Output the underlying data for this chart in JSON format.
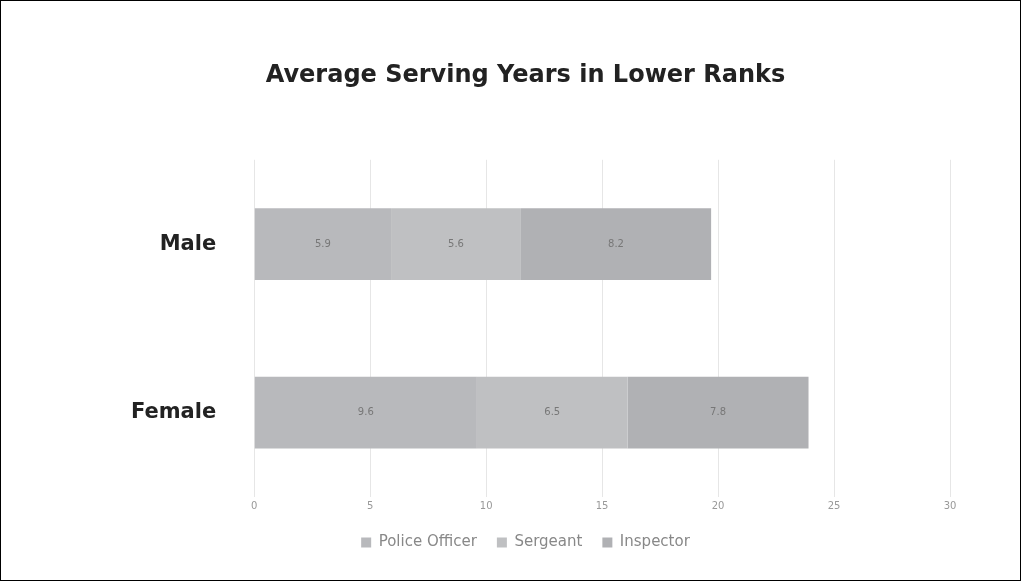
{
  "chart_data": {
    "type": "bar",
    "orientation": "horizontal",
    "stacked": true,
    "title": "Average Serving Years in Lower Ranks",
    "categories": [
      "Male",
      "Female"
    ],
    "series": [
      {
        "name": "Police Officer",
        "color": "#b8b9bc",
        "values": [
          5.9,
          9.6
        ]
      },
      {
        "name": "Sergeant",
        "color": "#bfc0c2",
        "values": [
          5.6,
          6.5
        ]
      },
      {
        "name": "Inspector",
        "color": "#b0b1b4",
        "values": [
          8.2,
          7.8
        ]
      }
    ],
    "xlim": [
      0,
      30
    ],
    "xticks": [
      0,
      5,
      10,
      15,
      20,
      25,
      30
    ],
    "grid": "x",
    "legend": "bottom",
    "data_labels": true
  }
}
